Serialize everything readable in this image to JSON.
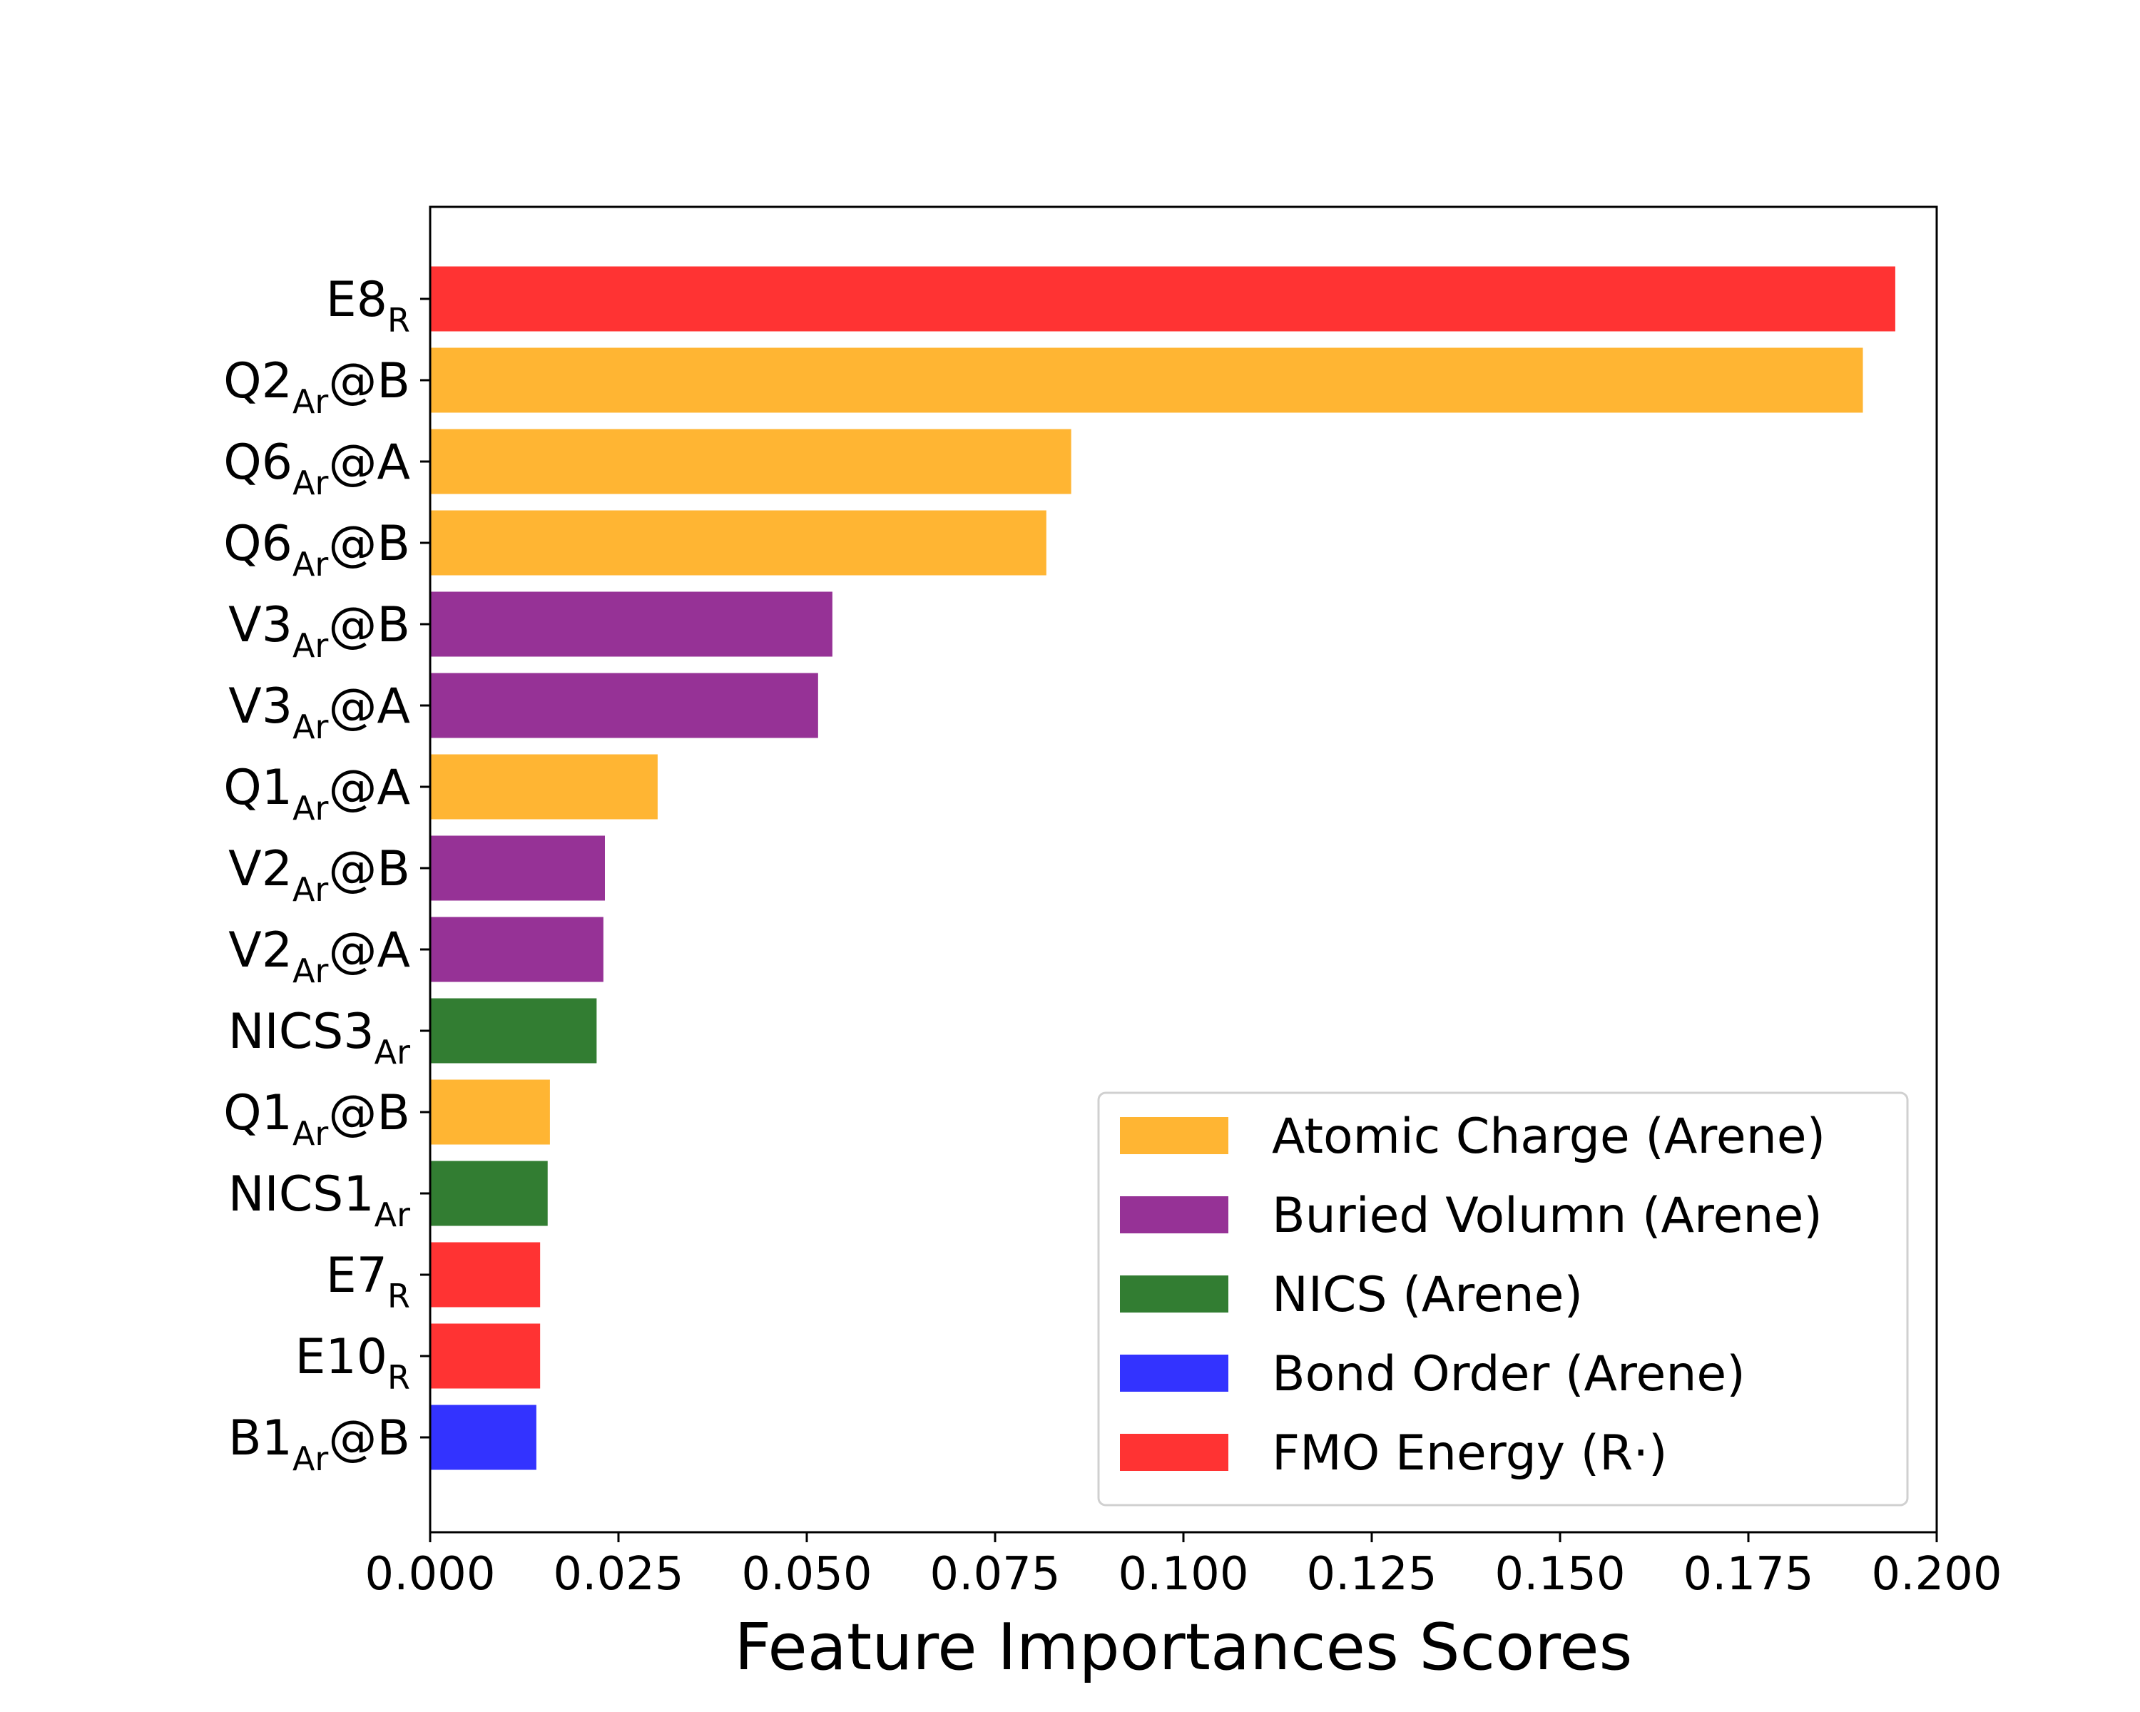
{
  "chart_data": {
    "type": "bar",
    "orientation": "horizontal",
    "title": "",
    "xlabel": "Feature Importances Scores",
    "ylabel": "",
    "xlim": [
      0.0,
      0.2
    ],
    "xticks": [
      "0.000",
      "0.025",
      "0.050",
      "0.075",
      "0.100",
      "0.125",
      "0.150",
      "0.175",
      "0.200"
    ],
    "grid": false,
    "legend_position": "lower-right",
    "legend": [
      {
        "label": "Atomic Charge (Arene)",
        "color": "#ffb533"
      },
      {
        "label": "Buried Volumn (Arene)",
        "color": "#963296"
      },
      {
        "label": "NICS (Arene)",
        "color": "#327d32"
      },
      {
        "label": "Bond Order (Arene)",
        "color": "#3333ff"
      },
      {
        "label": "FMO Energy (R·)",
        "color": "#ff3333"
      }
    ],
    "bars": [
      {
        "label": "E8",
        "sub": "R",
        "suffix": "",
        "value": 0.1945,
        "group": 4
      },
      {
        "label": "Q2",
        "sub": "Ar",
        "suffix": "@B",
        "value": 0.1902,
        "group": 0
      },
      {
        "label": "Q6",
        "sub": "Ar",
        "suffix": "@A",
        "value": 0.0851,
        "group": 0
      },
      {
        "label": "Q6",
        "sub": "Ar",
        "suffix": "@B",
        "value": 0.0818,
        "group": 0
      },
      {
        "label": "V3",
        "sub": "Ar",
        "suffix": "@B",
        "value": 0.0534,
        "group": 1
      },
      {
        "label": "V3",
        "sub": "Ar",
        "suffix": "@A",
        "value": 0.0515,
        "group": 1
      },
      {
        "label": "Q1",
        "sub": "Ar",
        "suffix": "@A",
        "value": 0.0302,
        "group": 0
      },
      {
        "label": "V2",
        "sub": "Ar",
        "suffix": "@B",
        "value": 0.0232,
        "group": 1
      },
      {
        "label": "V2",
        "sub": "Ar",
        "suffix": "@A",
        "value": 0.023,
        "group": 1
      },
      {
        "label": "NICS3",
        "sub": "Ar",
        "suffix": "",
        "value": 0.0221,
        "group": 2
      },
      {
        "label": "Q1",
        "sub": "Ar",
        "suffix": "@B",
        "value": 0.0159,
        "group": 0
      },
      {
        "label": "NICS1",
        "sub": "Ar",
        "suffix": "",
        "value": 0.0156,
        "group": 2
      },
      {
        "label": "E7",
        "sub": "R",
        "suffix": "",
        "value": 0.0146,
        "group": 4
      },
      {
        "label": "E10",
        "sub": "R",
        "suffix": "",
        "value": 0.0146,
        "group": 4
      },
      {
        "label": "B1",
        "sub": "Ar",
        "suffix": "@B",
        "value": 0.0141,
        "group": 3
      }
    ]
  }
}
